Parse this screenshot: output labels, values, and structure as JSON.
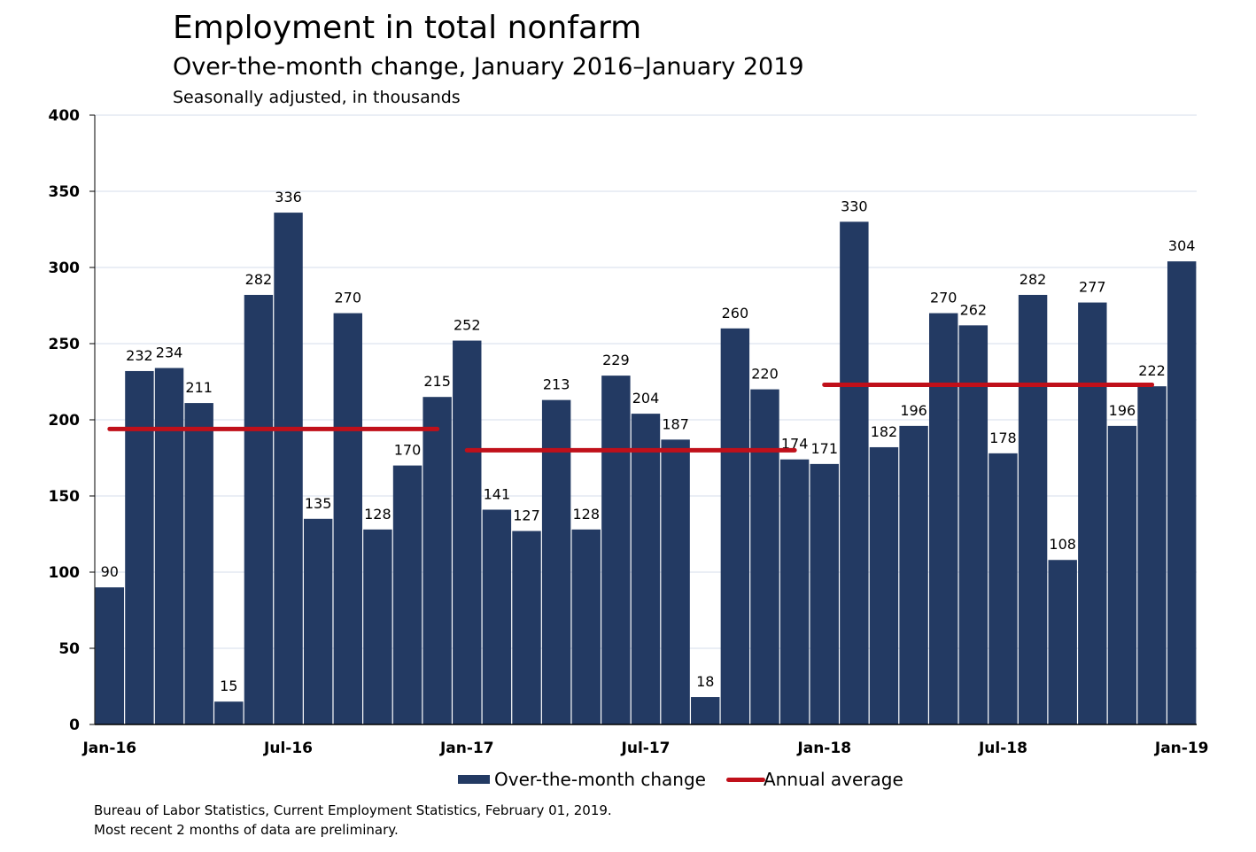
{
  "chart_data": {
    "type": "bar",
    "title": "Employment in total nonfarm",
    "subtitle": "Over-the-month change, January 2016–January 2019",
    "note": "Seasonally adjusted, in thousands",
    "ylim": [
      0,
      400
    ],
    "yticks": [
      0,
      50,
      100,
      150,
      200,
      250,
      300,
      350,
      400
    ],
    "grid": true,
    "categories": [
      "Jan-16",
      "Feb-16",
      "Mar-16",
      "Apr-16",
      "May-16",
      "Jun-16",
      "Jul-16",
      "Aug-16",
      "Sep-16",
      "Oct-16",
      "Nov-16",
      "Dec-16",
      "Jan-17",
      "Feb-17",
      "Mar-17",
      "Apr-17",
      "May-17",
      "Jun-17",
      "Jul-17",
      "Aug-17",
      "Sep-17",
      "Oct-17",
      "Nov-17",
      "Dec-17",
      "Jan-18",
      "Feb-18",
      "Mar-18",
      "Apr-18",
      "May-18",
      "Jun-18",
      "Jul-18",
      "Aug-18",
      "Sep-18",
      "Oct-18",
      "Nov-18",
      "Dec-18",
      "Jan-19"
    ],
    "xtick_labels": [
      {
        "index": 0,
        "label": "Jan-16"
      },
      {
        "index": 6,
        "label": "Jul-16"
      },
      {
        "index": 12,
        "label": "Jan-17"
      },
      {
        "index": 18,
        "label": "Jul-17"
      },
      {
        "index": 24,
        "label": "Jan-18"
      },
      {
        "index": 30,
        "label": "Jul-18"
      },
      {
        "index": 36,
        "label": "Jan-19"
      }
    ],
    "series": [
      {
        "name": "Over-the-month change",
        "type": "bar",
        "color": "#233a63",
        "values": [
          90,
          232,
          234,
          211,
          15,
          282,
          336,
          135,
          270,
          128,
          170,
          215,
          252,
          141,
          127,
          213,
          128,
          229,
          204,
          187,
          18,
          260,
          220,
          174,
          171,
          330,
          182,
          196,
          270,
          262,
          178,
          282,
          108,
          277,
          196,
          222,
          304
        ]
      },
      {
        "name": "Annual average",
        "type": "line",
        "color": "#c0101a",
        "segments": [
          {
            "start": "Jan-16",
            "end": "Dec-16",
            "value": 194
          },
          {
            "start": "Jan-17",
            "end": "Dec-17",
            "value": 180
          },
          {
            "start": "Jan-18",
            "end": "Dec-18",
            "value": 223
          }
        ]
      }
    ],
    "legend_position": "bottom",
    "footer": [
      "Bureau of Labor Statistics, Current Employment Statistics, February 01, 2019.",
      "Most recent 2 months of data are preliminary."
    ]
  }
}
